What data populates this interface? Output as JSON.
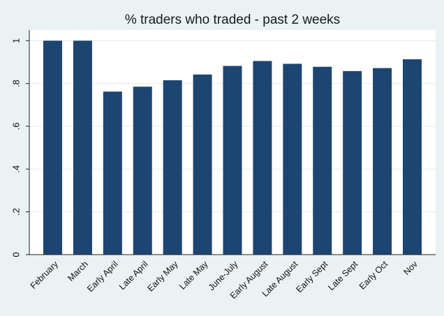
{
  "chart_data": {
    "type": "bar",
    "title": "% traders who traded - past 2 weeks",
    "xlabel": "",
    "ylabel": "",
    "categories": [
      "February",
      "March",
      "Early April",
      "Late April",
      "Early May",
      "Late May",
      "June-July",
      "Early August",
      "Late August",
      "Early Sept",
      "Late Sept",
      "Early Oct",
      "Nov"
    ],
    "values": [
      1.0,
      1.0,
      0.762,
      0.785,
      0.815,
      0.842,
      0.882,
      0.905,
      0.892,
      0.878,
      0.858,
      0.872,
      0.913
    ],
    "ylim": [
      0,
      1.05
    ],
    "yticks": [
      0,
      0.2,
      0.4,
      0.6,
      0.8,
      1
    ],
    "ytick_labels": [
      "0",
      ".2",
      ".4",
      ".6",
      ".8",
      "1"
    ],
    "grid": "horizontal",
    "colors": {
      "bar": "#1d4571",
      "plot_background": "#ffffff",
      "outer_background": "#eaf2f3",
      "grid": "#e3ebed"
    }
  }
}
